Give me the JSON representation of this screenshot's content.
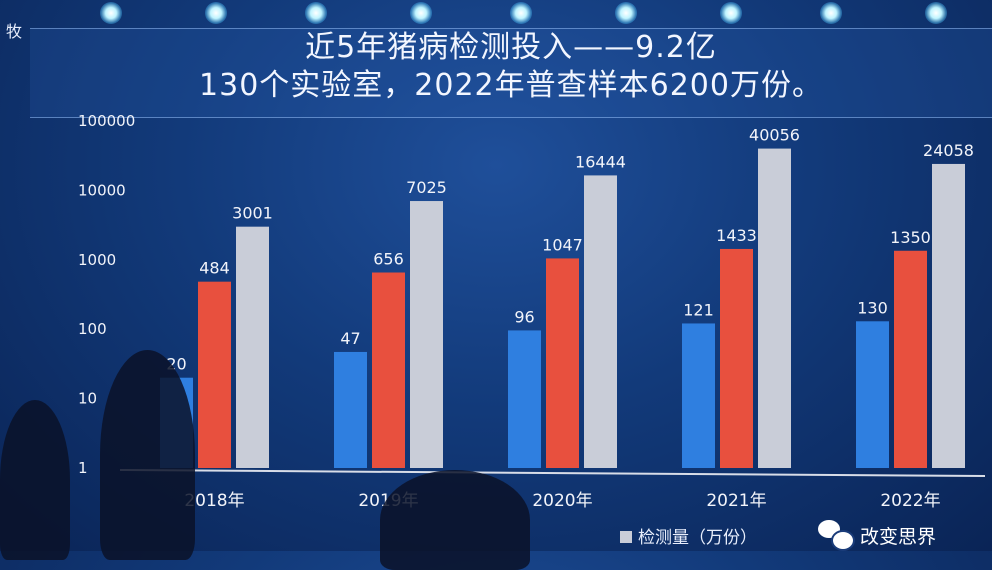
{
  "slide": {
    "corner_text": "牧",
    "title_line1": "近5年猪病检测投入——9.2亿",
    "title_line2": "130个实验室，2022年普查样本6200万份。"
  },
  "chart_data": {
    "type": "bar",
    "categories": [
      "2018年",
      "2019年",
      "2020年",
      "2021年",
      "2022年"
    ],
    "y_scale": "log",
    "ylim": [
      1,
      100000
    ],
    "y_ticks": [
      "1",
      "10",
      "100",
      "1000",
      "10000",
      "100000"
    ],
    "grid": false,
    "series": [
      {
        "color": "#2f7fe0",
        "values": [
          20,
          47,
          96,
          121,
          130
        ]
      },
      {
        "color": "#e8503e",
        "values": [
          484,
          656,
          1047,
          1433,
          1350
        ]
      },
      {
        "name": "检测量（万份）",
        "color": "#c9cdd8",
        "values": [
          3001,
          7025,
          16444,
          40056,
          24058
        ]
      }
    ],
    "legend_position": "bottom"
  },
  "watermark": {
    "text": "改变思界",
    "icon": "wechat-icon"
  }
}
